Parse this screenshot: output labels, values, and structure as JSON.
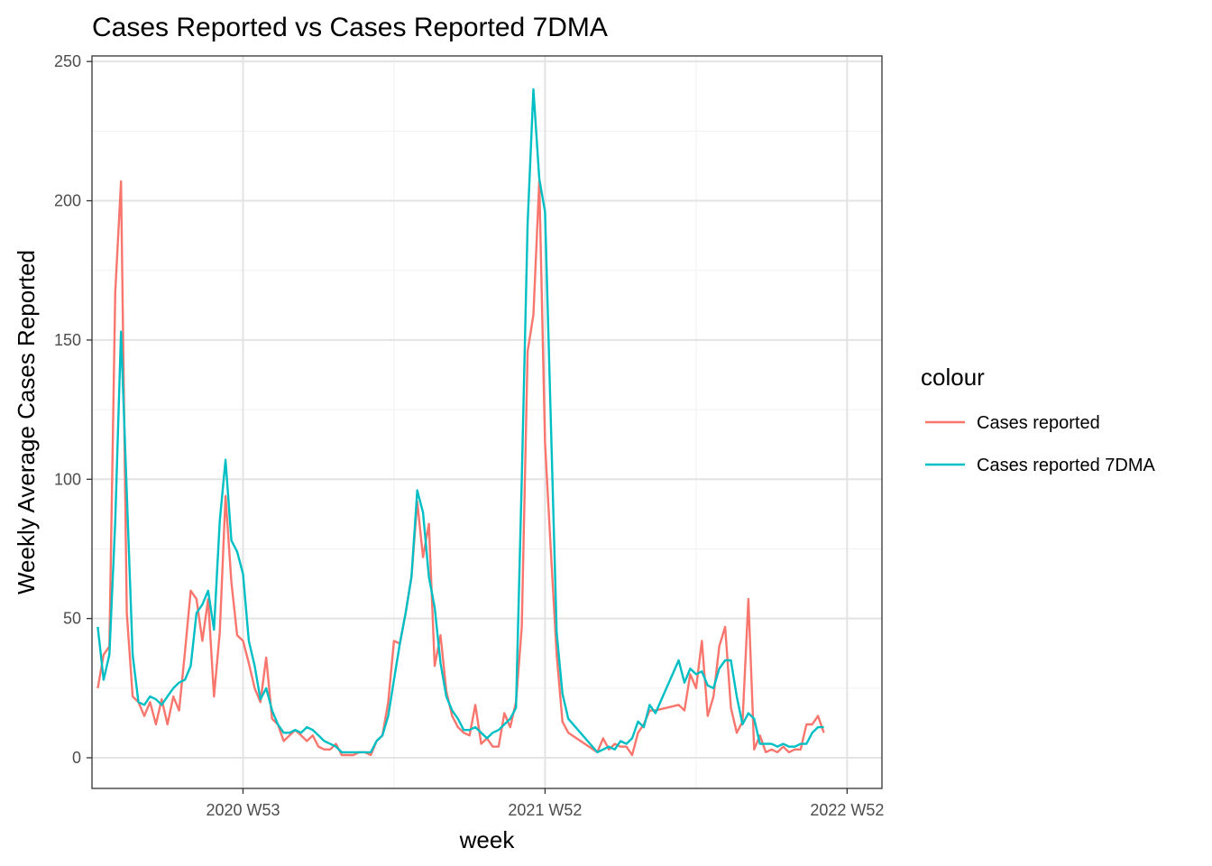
{
  "chart_data": {
    "type": "line",
    "title": "Cases Reported vs Cases Reported 7DMA",
    "xlabel": "week",
    "ylabel": "Weekly Average Cases Reported",
    "x_ticks": [
      "2020 W53",
      "2021 W52",
      "2022 W52"
    ],
    "x_tick_index": [
      20,
      72,
      124
    ],
    "xlim_index": [
      -6,
      130
    ],
    "y_ticks": [
      0,
      50,
      100,
      150,
      200,
      250
    ],
    "ylim": [
      -11,
      252
    ],
    "grid": true,
    "legend": {
      "title": "colour",
      "position": "right"
    },
    "series": [
      {
        "name": "Cases reported",
        "color": "#F8766D",
        "points": [
          [
            -5,
            25
          ],
          [
            -4,
            37
          ],
          [
            -3,
            40
          ],
          [
            -2,
            167
          ],
          [
            -1,
            207
          ],
          [
            0,
            52
          ],
          [
            1,
            22
          ],
          [
            2,
            20
          ],
          [
            3,
            15
          ],
          [
            4,
            20
          ],
          [
            5,
            12
          ],
          [
            6,
            21
          ],
          [
            7,
            12
          ],
          [
            8,
            22
          ],
          [
            9,
            17
          ],
          [
            10,
            38
          ],
          [
            11,
            60
          ],
          [
            12,
            57
          ],
          [
            13,
            42
          ],
          [
            14,
            57
          ],
          [
            15,
            22
          ],
          [
            16,
            45
          ],
          [
            17,
            94
          ],
          [
            18,
            63
          ],
          [
            19,
            44
          ],
          [
            20,
            42
          ],
          [
            21,
            34
          ],
          [
            22,
            25
          ],
          [
            23,
            20
          ],
          [
            24,
            36
          ],
          [
            25,
            14
          ],
          [
            26,
            12
          ],
          [
            27,
            6
          ],
          [
            28,
            8
          ],
          [
            29,
            10
          ],
          [
            30,
            8
          ],
          [
            31,
            6
          ],
          [
            32,
            8
          ],
          [
            33,
            4
          ],
          [
            34,
            3
          ],
          [
            35,
            3
          ],
          [
            36,
            5
          ],
          [
            37,
            1
          ],
          [
            38,
            1
          ],
          [
            39,
            1
          ],
          [
            40,
            2
          ],
          [
            41,
            2
          ],
          [
            42,
            1
          ],
          [
            43,
            6
          ],
          [
            44,
            8
          ],
          [
            45,
            20
          ],
          [
            46,
            42
          ],
          [
            47,
            41
          ],
          [
            48,
            52
          ],
          [
            49,
            65
          ],
          [
            50,
            92
          ],
          [
            51,
            72
          ],
          [
            52,
            84
          ],
          [
            53,
            33
          ],
          [
            54,
            44
          ],
          [
            55,
            24
          ],
          [
            56,
            15
          ],
          [
            57,
            11
          ],
          [
            58,
            9
          ],
          [
            59,
            8
          ],
          [
            60,
            19
          ],
          [
            61,
            5
          ],
          [
            62,
            7
          ],
          [
            63,
            4
          ],
          [
            64,
            4
          ],
          [
            65,
            16
          ],
          [
            66,
            11
          ],
          [
            67,
            20
          ],
          [
            68,
            47
          ],
          [
            69,
            146
          ],
          [
            70,
            159
          ],
          [
            71,
            207
          ],
          [
            72,
            113
          ],
          [
            73,
            74
          ],
          [
            74,
            37
          ],
          [
            75,
            13
          ],
          [
            76,
            9
          ],
          [
            81,
            2
          ],
          [
            82,
            7
          ],
          [
            83,
            3
          ],
          [
            84,
            5
          ],
          [
            85,
            4
          ],
          [
            86,
            4
          ],
          [
            87,
            1
          ],
          [
            88,
            9
          ],
          [
            89,
            12
          ],
          [
            90,
            17
          ],
          [
            91,
            17
          ],
          [
            95,
            19
          ],
          [
            96,
            17
          ],
          [
            97,
            30
          ],
          [
            98,
            25
          ],
          [
            99,
            42
          ],
          [
            100,
            15
          ],
          [
            101,
            22
          ],
          [
            102,
            40
          ],
          [
            103,
            47
          ],
          [
            104,
            18
          ],
          [
            105,
            9
          ],
          [
            106,
            13
          ],
          [
            107,
            57
          ],
          [
            108,
            3
          ],
          [
            109,
            8
          ],
          [
            110,
            2
          ],
          [
            111,
            3
          ],
          [
            112,
            2
          ],
          [
            113,
            4
          ],
          [
            114,
            2
          ],
          [
            115,
            3
          ],
          [
            116,
            3
          ],
          [
            117,
            12
          ],
          [
            118,
            12
          ],
          [
            119,
            15
          ],
          [
            120,
            9
          ]
        ]
      },
      {
        "name": "Cases reported 7DMA",
        "color": "#00BFC4",
        "points": [
          [
            -5,
            47
          ],
          [
            -4,
            28
          ],
          [
            -3,
            37
          ],
          [
            -2,
            85
          ],
          [
            -1,
            153
          ],
          [
            0,
            95
          ],
          [
            1,
            37
          ],
          [
            2,
            20
          ],
          [
            3,
            19
          ],
          [
            4,
            22
          ],
          [
            5,
            21
          ],
          [
            6,
            19
          ],
          [
            7,
            22
          ],
          [
            8,
            25
          ],
          [
            9,
            27
          ],
          [
            10,
            28
          ],
          [
            11,
            33
          ],
          [
            12,
            52
          ],
          [
            13,
            55
          ],
          [
            14,
            60
          ],
          [
            15,
            46
          ],
          [
            16,
            85
          ],
          [
            17,
            107
          ],
          [
            18,
            78
          ],
          [
            19,
            74
          ],
          [
            20,
            66
          ],
          [
            21,
            42
          ],
          [
            22,
            33
          ],
          [
            23,
            21
          ],
          [
            24,
            25
          ],
          [
            25,
            17
          ],
          [
            26,
            12
          ],
          [
            27,
            9
          ],
          [
            28,
            9
          ],
          [
            29,
            10
          ],
          [
            30,
            9
          ],
          [
            31,
            11
          ],
          [
            32,
            10
          ],
          [
            33,
            8
          ],
          [
            34,
            6
          ],
          [
            35,
            5
          ],
          [
            36,
            4
          ],
          [
            37,
            2
          ],
          [
            38,
            2
          ],
          [
            39,
            2
          ],
          [
            40,
            2
          ],
          [
            41,
            2
          ],
          [
            42,
            2
          ],
          [
            43,
            6
          ],
          [
            44,
            8
          ],
          [
            45,
            15
          ],
          [
            46,
            28
          ],
          [
            47,
            41
          ],
          [
            48,
            52
          ],
          [
            49,
            65
          ],
          [
            50,
            96
          ],
          [
            51,
            88
          ],
          [
            52,
            65
          ],
          [
            53,
            54
          ],
          [
            54,
            34
          ],
          [
            55,
            22
          ],
          [
            56,
            17
          ],
          [
            57,
            14
          ],
          [
            58,
            10
          ],
          [
            59,
            10
          ],
          [
            60,
            11
          ],
          [
            61,
            9
          ],
          [
            62,
            7
          ],
          [
            63,
            9
          ],
          [
            64,
            10
          ],
          [
            65,
            12
          ],
          [
            66,
            14
          ],
          [
            67,
            18
          ],
          [
            68,
            100
          ],
          [
            69,
            192
          ],
          [
            70,
            240
          ],
          [
            71,
            208
          ],
          [
            72,
            196
          ],
          [
            73,
            120
          ],
          [
            74,
            45
          ],
          [
            75,
            23
          ],
          [
            76,
            14
          ],
          [
            81,
            2
          ],
          [
            82,
            3
          ],
          [
            83,
            4
          ],
          [
            84,
            3
          ],
          [
            85,
            6
          ],
          [
            86,
            5
          ],
          [
            87,
            7
          ],
          [
            88,
            13
          ],
          [
            89,
            11
          ],
          [
            90,
            19
          ],
          [
            91,
            16
          ],
          [
            95,
            35
          ],
          [
            96,
            27
          ],
          [
            97,
            32
          ],
          [
            98,
            30
          ],
          [
            99,
            31
          ],
          [
            100,
            26
          ],
          [
            101,
            25
          ],
          [
            102,
            32
          ],
          [
            103,
            35
          ],
          [
            104,
            35
          ],
          [
            105,
            22
          ],
          [
            106,
            12
          ],
          [
            107,
            16
          ],
          [
            108,
            14
          ],
          [
            109,
            5
          ],
          [
            110,
            5
          ],
          [
            111,
            5
          ],
          [
            112,
            4
          ],
          [
            113,
            5
          ],
          [
            114,
            4
          ],
          [
            115,
            4
          ],
          [
            116,
            5
          ],
          [
            117,
            5
          ],
          [
            118,
            9
          ],
          [
            119,
            11
          ],
          [
            120,
            11
          ]
        ]
      }
    ]
  }
}
